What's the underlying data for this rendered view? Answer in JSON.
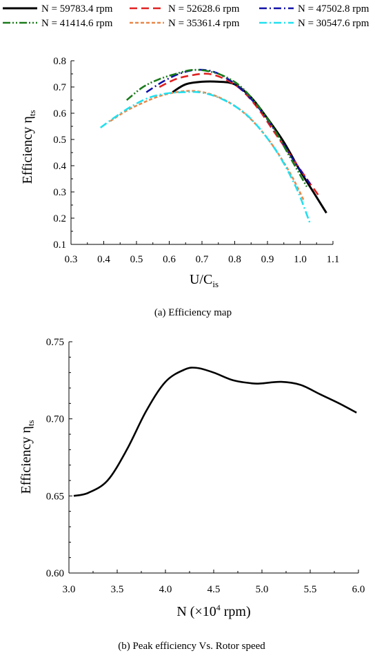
{
  "chart_data": [
    {
      "type": "line",
      "caption": "(a) Efficiency map",
      "xlabel_main": "U/C",
      "xlabel_sub": "is",
      "ylabel_main": "Efficiency η",
      "ylabel_sub": "ts",
      "xlim": [
        0.3,
        1.1
      ],
      "ylim": [
        0.1,
        0.8
      ],
      "xticks": [
        0.3,
        0.4,
        0.5,
        0.6,
        0.7,
        0.8,
        0.9,
        1.0,
        1.1
      ],
      "xtick_labels": [
        "0.3",
        "0.4",
        "0.5",
        "0.6",
        "0.7",
        "0.8",
        "0.9",
        "1.0",
        "1.1"
      ],
      "yticks": [
        0.1,
        0.2,
        0.3,
        0.4,
        0.5,
        0.6,
        0.7,
        0.8
      ],
      "ytick_labels": [
        "0.1",
        "0.2",
        "0.3",
        "0.4",
        "0.5",
        "0.6",
        "0.7",
        "0.8"
      ],
      "grid": false,
      "legend_position": "top",
      "series": [
        {
          "name": "N = 59783.4 rpm",
          "color": "#000000",
          "dash": "solid",
          "x": [
            0.61,
            0.65,
            0.7,
            0.75,
            0.8,
            0.85,
            0.9,
            0.95,
            1.0,
            1.04,
            1.08
          ],
          "y": [
            0.68,
            0.71,
            0.72,
            0.72,
            0.71,
            0.66,
            0.58,
            0.49,
            0.38,
            0.3,
            0.22
          ]
        },
        {
          "name": "N = 52628.6 rpm",
          "color": "#e02020",
          "dash": "dash",
          "x": [
            0.57,
            0.62,
            0.67,
            0.72,
            0.77,
            0.82,
            0.87,
            0.92,
            0.97,
            1.02,
            1.06
          ],
          "y": [
            0.7,
            0.73,
            0.745,
            0.75,
            0.73,
            0.69,
            0.62,
            0.53,
            0.44,
            0.35,
            0.28
          ]
        },
        {
          "name": "N = 47502.8 rpm",
          "color": "#1010a8",
          "dash": "dashdot",
          "x": [
            0.53,
            0.58,
            0.63,
            0.68,
            0.73,
            0.78,
            0.83,
            0.88,
            0.93,
            0.98,
            1.03
          ],
          "y": [
            0.68,
            0.72,
            0.75,
            0.765,
            0.76,
            0.73,
            0.68,
            0.61,
            0.52,
            0.42,
            0.33
          ]
        },
        {
          "name": "N = 41414.6 rpm",
          "color": "#1a7a1a",
          "dash": "dashdotdot",
          "x": [
            0.47,
            0.52,
            0.57,
            0.62,
            0.67,
            0.72,
            0.77,
            0.82,
            0.87,
            0.92,
            0.97,
            1.02
          ],
          "y": [
            0.65,
            0.7,
            0.73,
            0.75,
            0.765,
            0.76,
            0.74,
            0.7,
            0.63,
            0.54,
            0.43,
            0.32
          ]
        },
        {
          "name": "N = 35361.4 rpm",
          "color": "#e8884a",
          "dash": "short",
          "x": [
            0.42,
            0.47,
            0.52,
            0.57,
            0.62,
            0.67,
            0.72,
            0.77,
            0.82,
            0.87,
            0.92,
            0.97,
            1.01
          ],
          "y": [
            0.57,
            0.61,
            0.64,
            0.665,
            0.68,
            0.685,
            0.675,
            0.65,
            0.61,
            0.55,
            0.47,
            0.37,
            0.27
          ]
        },
        {
          "name": "N = 30547.6 rpm",
          "color": "#20e0f0",
          "dash": "dashdot",
          "x": [
            0.39,
            0.44,
            0.49,
            0.54,
            0.59,
            0.64,
            0.69,
            0.74,
            0.79,
            0.84,
            0.89,
            0.94,
            0.99,
            1.03
          ],
          "y": [
            0.545,
            0.59,
            0.63,
            0.66,
            0.675,
            0.68,
            0.68,
            0.665,
            0.635,
            0.59,
            0.52,
            0.43,
            0.31,
            0.18
          ]
        }
      ]
    },
    {
      "type": "line",
      "caption": "(b) Peak efficiency Vs. Rotor speed",
      "xlabel_pre": "N (×10",
      "xlabel_sup": "4",
      "xlabel_post": " rpm)",
      "ylabel_main": "Efficiency η",
      "ylabel_sub": "ts",
      "xlim": [
        3.0,
        6.0
      ],
      "ylim": [
        0.6,
        0.75
      ],
      "xticks": [
        3.0,
        3.5,
        4.0,
        4.5,
        5.0,
        5.5,
        6.0
      ],
      "xtick_labels": [
        "3.0",
        "3.5",
        "4.0",
        "4.5",
        "5.0",
        "5.5",
        "6.0"
      ],
      "yticks": [
        0.6,
        0.65,
        0.7,
        0.75
      ],
      "ytick_labels": [
        "0.60",
        "0.65",
        "0.70",
        "0.75"
      ],
      "grid": false,
      "series": [
        {
          "color": "#000000",
          "x": [
            3.05,
            3.2,
            3.4,
            3.6,
            3.8,
            4.0,
            4.2,
            4.33,
            4.5,
            4.7,
            4.9,
            5.0,
            5.2,
            5.4,
            5.6,
            5.8,
            5.98
          ],
          "y": [
            0.65,
            0.652,
            0.66,
            0.68,
            0.705,
            0.724,
            0.732,
            0.733,
            0.73,
            0.725,
            0.723,
            0.723,
            0.724,
            0.722,
            0.716,
            0.71,
            0.704
          ]
        }
      ]
    }
  ]
}
